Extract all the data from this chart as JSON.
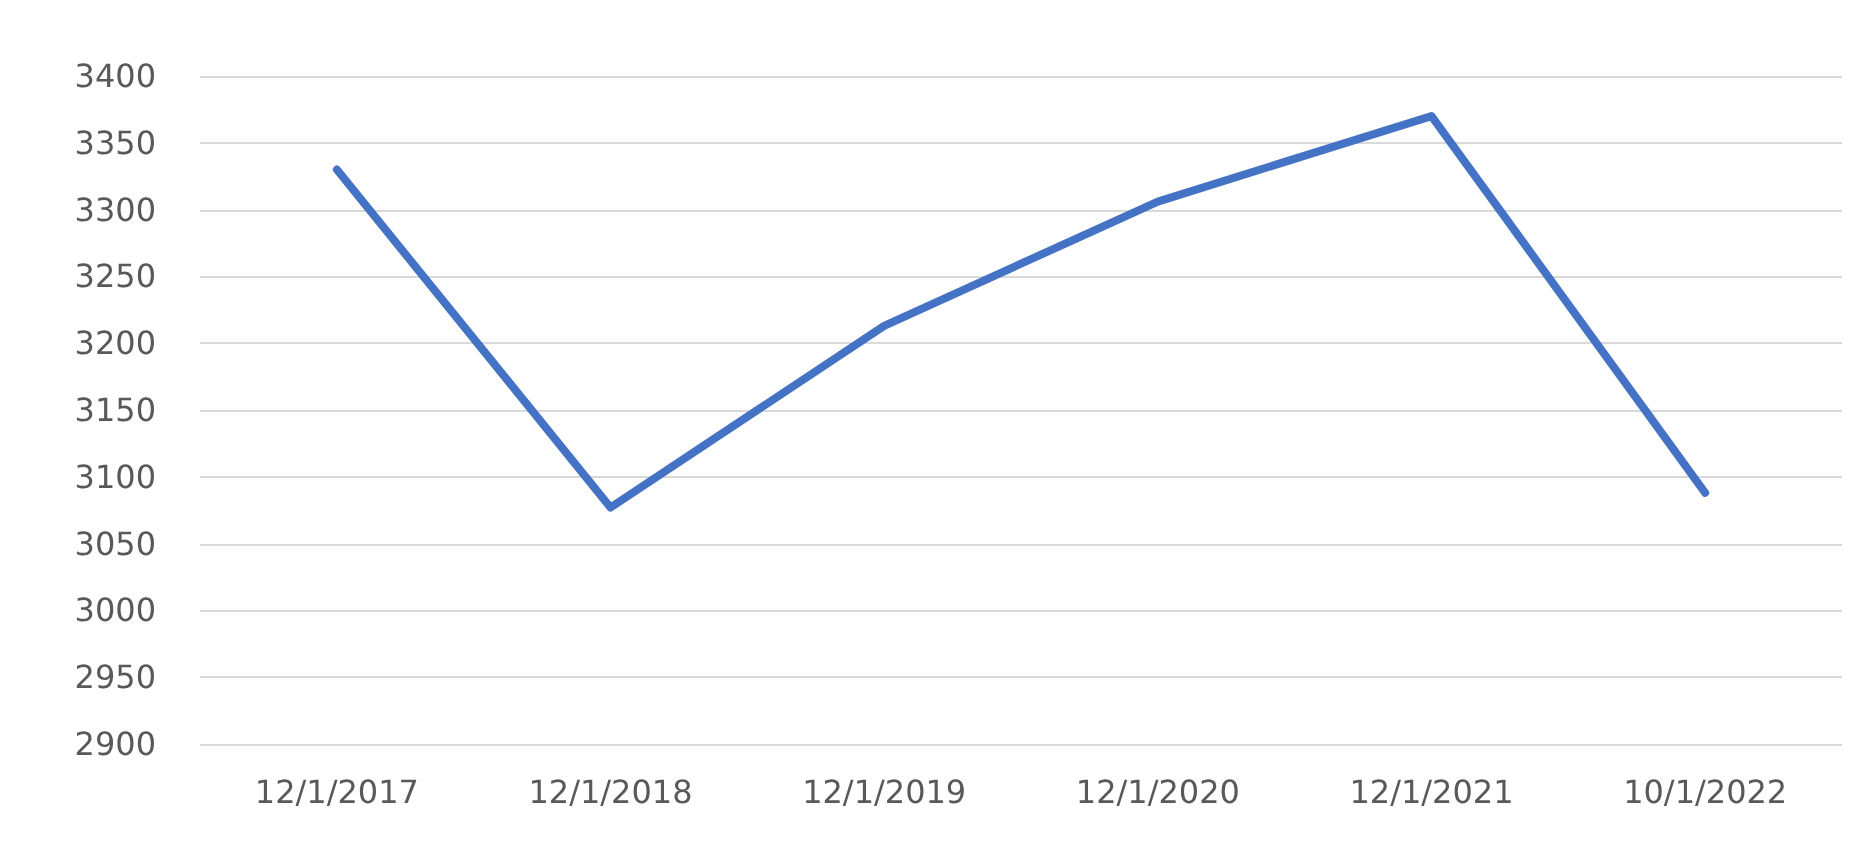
{
  "chart_data": {
    "type": "line",
    "categories": [
      "12/1/2017",
      "12/1/2018",
      "12/1/2019",
      "12/1/2020",
      "12/1/2021",
      "10/1/2022"
    ],
    "values": [
      3330,
      3077,
      3213,
      3306,
      3370,
      3088
    ],
    "color": "#4472c4",
    "ylim": [
      2900,
      3400
    ],
    "yticks": [
      2900,
      2950,
      3000,
      3050,
      3100,
      3150,
      3200,
      3250,
      3300,
      3350,
      3400
    ],
    "grid": "y",
    "marker": "none",
    "line_style": "solid"
  }
}
